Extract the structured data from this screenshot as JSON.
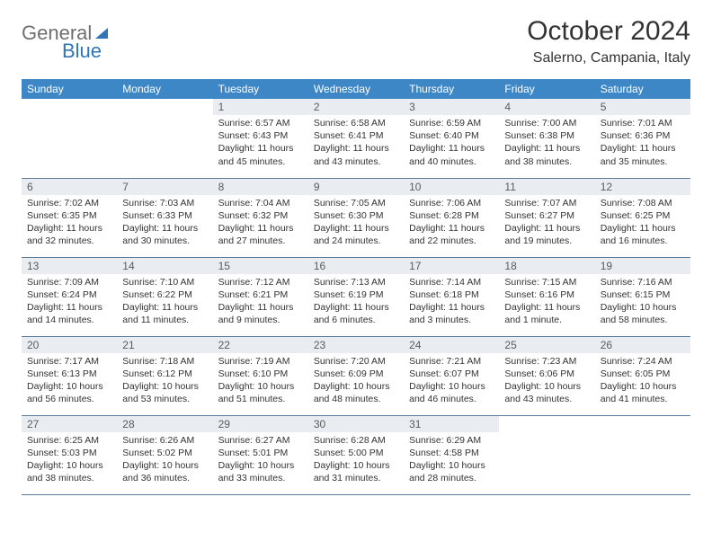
{
  "logo": {
    "text1": "General",
    "text2": "Blue"
  },
  "title": "October 2024",
  "location": "Salerno, Campania, Italy",
  "colors": {
    "header_bg": "#3d87c7",
    "header_text": "#ffffff",
    "daynum_bg": "#e9edf1",
    "border": "#5a7a9a",
    "logo_gray": "#6f6f6f",
    "logo_blue": "#2f76b6"
  },
  "day_headers": [
    "Sunday",
    "Monday",
    "Tuesday",
    "Wednesday",
    "Thursday",
    "Friday",
    "Saturday"
  ],
  "weeks": [
    [
      {
        "n": "",
        "sr": "",
        "ss": "",
        "dl": ""
      },
      {
        "n": "",
        "sr": "",
        "ss": "",
        "dl": ""
      },
      {
        "n": "1",
        "sr": "Sunrise: 6:57 AM",
        "ss": "Sunset: 6:43 PM",
        "dl": "Daylight: 11 hours and 45 minutes."
      },
      {
        "n": "2",
        "sr": "Sunrise: 6:58 AM",
        "ss": "Sunset: 6:41 PM",
        "dl": "Daylight: 11 hours and 43 minutes."
      },
      {
        "n": "3",
        "sr": "Sunrise: 6:59 AM",
        "ss": "Sunset: 6:40 PM",
        "dl": "Daylight: 11 hours and 40 minutes."
      },
      {
        "n": "4",
        "sr": "Sunrise: 7:00 AM",
        "ss": "Sunset: 6:38 PM",
        "dl": "Daylight: 11 hours and 38 minutes."
      },
      {
        "n": "5",
        "sr": "Sunrise: 7:01 AM",
        "ss": "Sunset: 6:36 PM",
        "dl": "Daylight: 11 hours and 35 minutes."
      }
    ],
    [
      {
        "n": "6",
        "sr": "Sunrise: 7:02 AM",
        "ss": "Sunset: 6:35 PM",
        "dl": "Daylight: 11 hours and 32 minutes."
      },
      {
        "n": "7",
        "sr": "Sunrise: 7:03 AM",
        "ss": "Sunset: 6:33 PM",
        "dl": "Daylight: 11 hours and 30 minutes."
      },
      {
        "n": "8",
        "sr": "Sunrise: 7:04 AM",
        "ss": "Sunset: 6:32 PM",
        "dl": "Daylight: 11 hours and 27 minutes."
      },
      {
        "n": "9",
        "sr": "Sunrise: 7:05 AM",
        "ss": "Sunset: 6:30 PM",
        "dl": "Daylight: 11 hours and 24 minutes."
      },
      {
        "n": "10",
        "sr": "Sunrise: 7:06 AM",
        "ss": "Sunset: 6:28 PM",
        "dl": "Daylight: 11 hours and 22 minutes."
      },
      {
        "n": "11",
        "sr": "Sunrise: 7:07 AM",
        "ss": "Sunset: 6:27 PM",
        "dl": "Daylight: 11 hours and 19 minutes."
      },
      {
        "n": "12",
        "sr": "Sunrise: 7:08 AM",
        "ss": "Sunset: 6:25 PM",
        "dl": "Daylight: 11 hours and 16 minutes."
      }
    ],
    [
      {
        "n": "13",
        "sr": "Sunrise: 7:09 AM",
        "ss": "Sunset: 6:24 PM",
        "dl": "Daylight: 11 hours and 14 minutes."
      },
      {
        "n": "14",
        "sr": "Sunrise: 7:10 AM",
        "ss": "Sunset: 6:22 PM",
        "dl": "Daylight: 11 hours and 11 minutes."
      },
      {
        "n": "15",
        "sr": "Sunrise: 7:12 AM",
        "ss": "Sunset: 6:21 PM",
        "dl": "Daylight: 11 hours and 9 minutes."
      },
      {
        "n": "16",
        "sr": "Sunrise: 7:13 AM",
        "ss": "Sunset: 6:19 PM",
        "dl": "Daylight: 11 hours and 6 minutes."
      },
      {
        "n": "17",
        "sr": "Sunrise: 7:14 AM",
        "ss": "Sunset: 6:18 PM",
        "dl": "Daylight: 11 hours and 3 minutes."
      },
      {
        "n": "18",
        "sr": "Sunrise: 7:15 AM",
        "ss": "Sunset: 6:16 PM",
        "dl": "Daylight: 11 hours and 1 minute."
      },
      {
        "n": "19",
        "sr": "Sunrise: 7:16 AM",
        "ss": "Sunset: 6:15 PM",
        "dl": "Daylight: 10 hours and 58 minutes."
      }
    ],
    [
      {
        "n": "20",
        "sr": "Sunrise: 7:17 AM",
        "ss": "Sunset: 6:13 PM",
        "dl": "Daylight: 10 hours and 56 minutes."
      },
      {
        "n": "21",
        "sr": "Sunrise: 7:18 AM",
        "ss": "Sunset: 6:12 PM",
        "dl": "Daylight: 10 hours and 53 minutes."
      },
      {
        "n": "22",
        "sr": "Sunrise: 7:19 AM",
        "ss": "Sunset: 6:10 PM",
        "dl": "Daylight: 10 hours and 51 minutes."
      },
      {
        "n": "23",
        "sr": "Sunrise: 7:20 AM",
        "ss": "Sunset: 6:09 PM",
        "dl": "Daylight: 10 hours and 48 minutes."
      },
      {
        "n": "24",
        "sr": "Sunrise: 7:21 AM",
        "ss": "Sunset: 6:07 PM",
        "dl": "Daylight: 10 hours and 46 minutes."
      },
      {
        "n": "25",
        "sr": "Sunrise: 7:23 AM",
        "ss": "Sunset: 6:06 PM",
        "dl": "Daylight: 10 hours and 43 minutes."
      },
      {
        "n": "26",
        "sr": "Sunrise: 7:24 AM",
        "ss": "Sunset: 6:05 PM",
        "dl": "Daylight: 10 hours and 41 minutes."
      }
    ],
    [
      {
        "n": "27",
        "sr": "Sunrise: 6:25 AM",
        "ss": "Sunset: 5:03 PM",
        "dl": "Daylight: 10 hours and 38 minutes."
      },
      {
        "n": "28",
        "sr": "Sunrise: 6:26 AM",
        "ss": "Sunset: 5:02 PM",
        "dl": "Daylight: 10 hours and 36 minutes."
      },
      {
        "n": "29",
        "sr": "Sunrise: 6:27 AM",
        "ss": "Sunset: 5:01 PM",
        "dl": "Daylight: 10 hours and 33 minutes."
      },
      {
        "n": "30",
        "sr": "Sunrise: 6:28 AM",
        "ss": "Sunset: 5:00 PM",
        "dl": "Daylight: 10 hours and 31 minutes."
      },
      {
        "n": "31",
        "sr": "Sunrise: 6:29 AM",
        "ss": "Sunset: 4:58 PM",
        "dl": "Daylight: 10 hours and 28 minutes."
      },
      {
        "n": "",
        "sr": "",
        "ss": "",
        "dl": ""
      },
      {
        "n": "",
        "sr": "",
        "ss": "",
        "dl": ""
      }
    ]
  ]
}
